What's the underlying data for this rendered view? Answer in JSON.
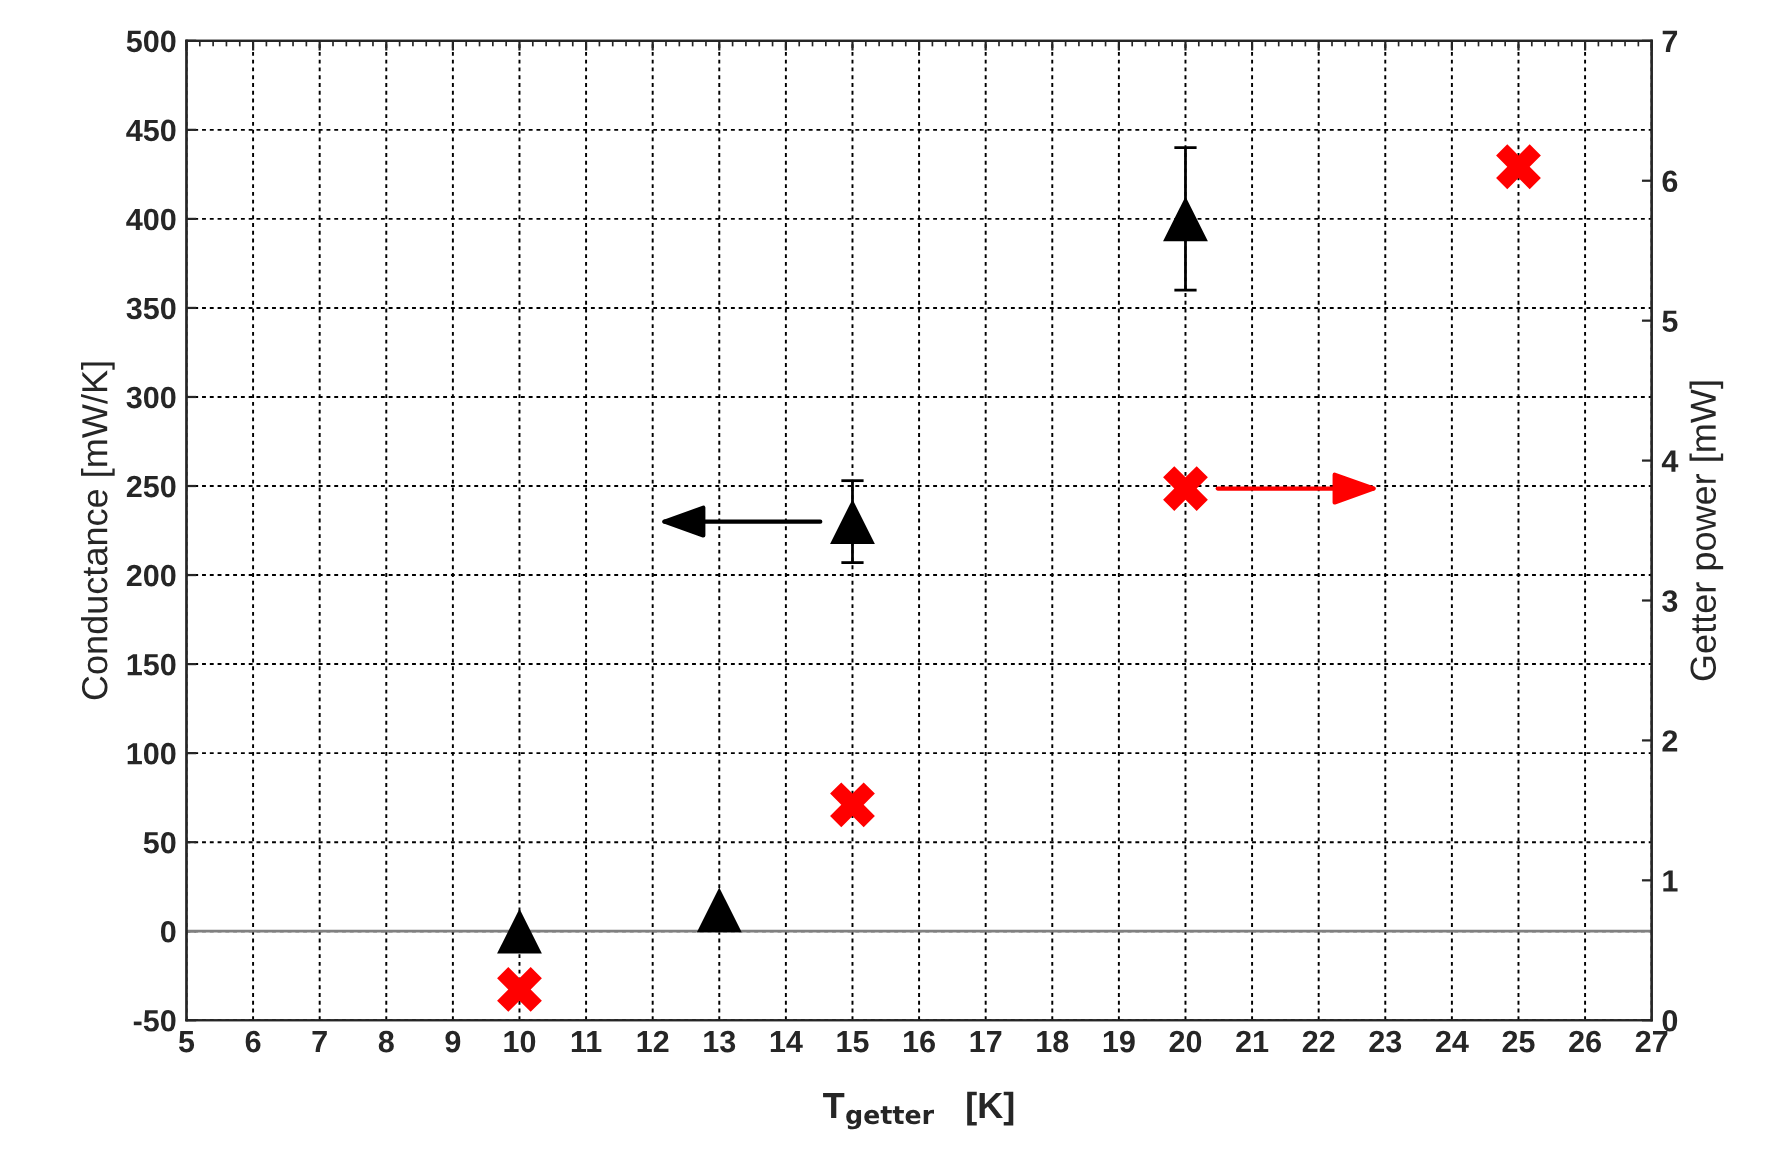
{
  "chart_data": {
    "type": "scatter",
    "xlabel": "T$_{getter}$   [K]",
    "ylabel": "Conductance [mW/K]",
    "y2label": "Getter power [mW]",
    "xlim": [
      5,
      27
    ],
    "xticks": [
      5,
      6,
      7,
      8,
      9,
      10,
      11,
      12,
      13,
      14,
      15,
      16,
      17,
      18,
      19,
      20,
      21,
      22,
      23,
      24,
      25,
      26,
      27
    ],
    "ylim": [
      -50,
      500
    ],
    "yticks": [
      -50,
      0,
      50,
      100,
      150,
      200,
      250,
      300,
      350,
      400,
      450,
      500
    ],
    "y2lim": [
      0,
      7
    ],
    "y2ticks": [
      0,
      1,
      2,
      3,
      4,
      5,
      6,
      7
    ],
    "grid": true,
    "legend": false,
    "ref_lines": [
      {
        "axis": "y",
        "value": 0,
        "color": "#808080",
        "line_style": "solid"
      }
    ],
    "series": [
      {
        "color": "#000000",
        "marker": "triangle",
        "x": [
          10,
          13,
          15,
          20
        ],
        "values": [
          0,
          12,
          230,
          400
        ],
        "errors": [
          null,
          null,
          [
            207,
            253
          ],
          [
            360,
            440
          ]
        ]
      },
      {
        "color": "#ff0000",
        "marker": "cross",
        "axis": "y2",
        "x": [
          10,
          15,
          20,
          25
        ],
        "values": [
          0.22,
          1.54,
          3.8,
          6.1
        ]
      }
    ]
  }
}
